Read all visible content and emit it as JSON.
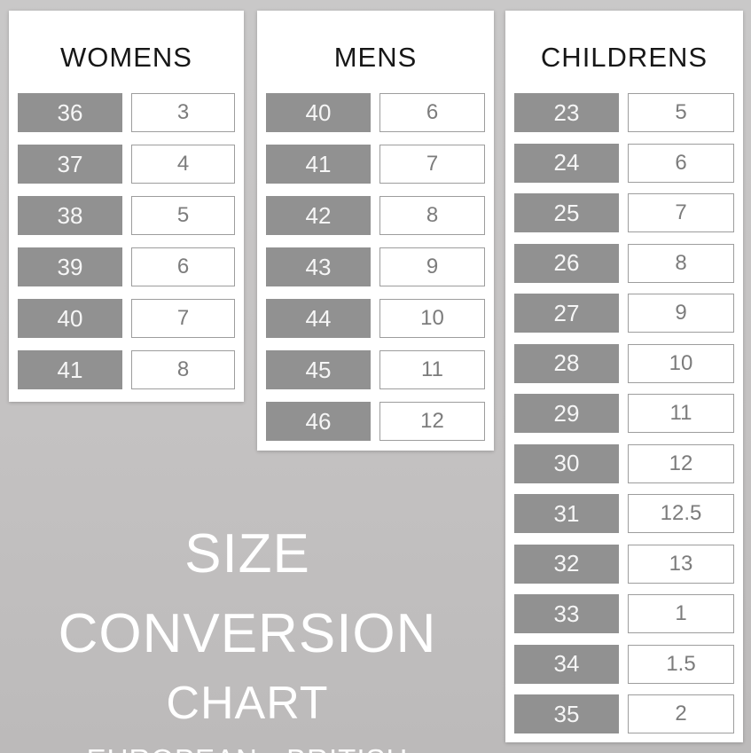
{
  "poster": {
    "title_line1": "SIZE CONVERSION",
    "title_line2": "CHART",
    "subtitle": "EUROPEAN - BRITISH"
  },
  "colors": {
    "background_top": "#c9c8c8",
    "background_bottom": "#bcbaba",
    "panel": "#ffffff",
    "eu_box": "#919191",
    "eu_text": "#f6f6f6",
    "uk_text": "#7c7c7c",
    "uk_border": "#9d9d9d",
    "header_text": "#171717",
    "title_text": "#ffffff"
  },
  "chart_data": {
    "type": "table",
    "title": "SIZE CONVERSION CHART",
    "subtitle": "EUROPEAN - BRITISH",
    "columns": [
      "European",
      "British"
    ],
    "legend_hint": "gray box = European size, outlined white box = British size",
    "tables": [
      {
        "name": "WOMENS",
        "rows": [
          [
            "36",
            "3"
          ],
          [
            "37",
            "4"
          ],
          [
            "38",
            "5"
          ],
          [
            "39",
            "6"
          ],
          [
            "40",
            "7"
          ],
          [
            "41",
            "8"
          ]
        ]
      },
      {
        "name": "MENS",
        "rows": [
          [
            "40",
            "6"
          ],
          [
            "41",
            "7"
          ],
          [
            "42",
            "8"
          ],
          [
            "43",
            "9"
          ],
          [
            "44",
            "10"
          ],
          [
            "45",
            "11"
          ],
          [
            "46",
            "12"
          ]
        ]
      },
      {
        "name": "CHILDRENS",
        "rows": [
          [
            "23",
            "5"
          ],
          [
            "24",
            "6"
          ],
          [
            "25",
            "7"
          ],
          [
            "26",
            "8"
          ],
          [
            "27",
            "9"
          ],
          [
            "28",
            "10"
          ],
          [
            "29",
            "11"
          ],
          [
            "30",
            "12"
          ],
          [
            "31",
            "12.5"
          ],
          [
            "32",
            "13"
          ],
          [
            "33",
            "1"
          ],
          [
            "34",
            "1.5"
          ],
          [
            "35",
            "2"
          ]
        ]
      }
    ]
  }
}
